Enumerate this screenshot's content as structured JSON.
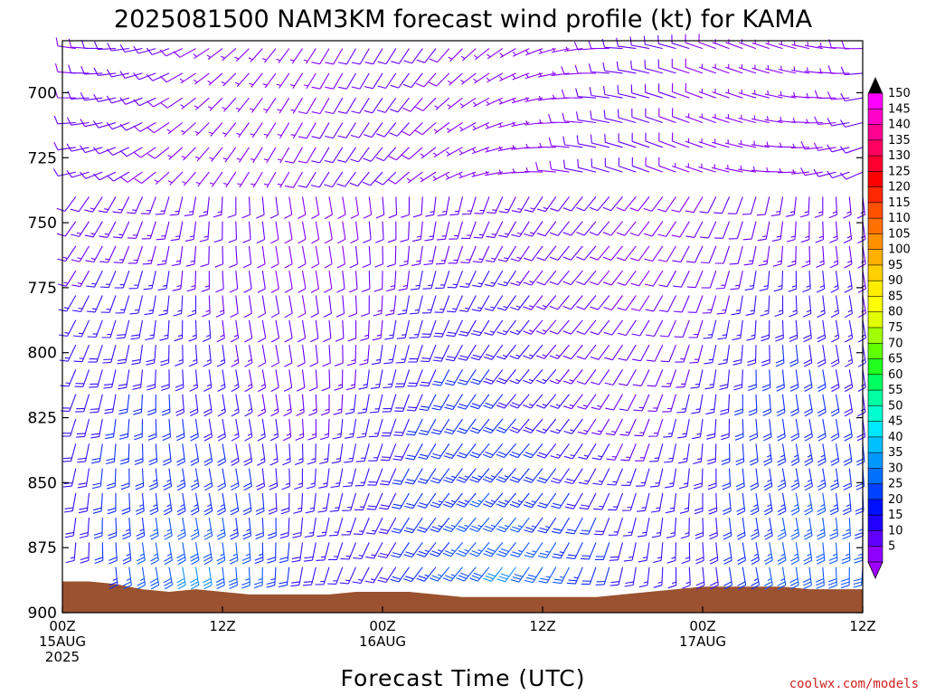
{
  "chart_data": {
    "type": "wind-barb-profile",
    "title": "2025081500 NAM3KM forecast wind profile (kt) for KAMA",
    "xlabel": "Forecast Time (UTC)",
    "ylabel": "",
    "y_axis": {
      "ticks": [
        "700",
        "725",
        "750",
        "775",
        "800",
        "825",
        "850",
        "875",
        "900"
      ],
      "ylim": [
        680,
        900
      ],
      "inverted": true
    },
    "x_axis": {
      "xlim": [
        0,
        60
      ],
      "unit": "forecast hour",
      "ticks": [
        {
          "hour": 0,
          "lines": [
            "00Z",
            "15AUG",
            "2025"
          ]
        },
        {
          "hour": 12,
          "lines": [
            "12Z"
          ]
        },
        {
          "hour": 24,
          "lines": [
            "00Z",
            "16AUG"
          ]
        },
        {
          "hour": 36,
          "lines": [
            "12Z"
          ]
        },
        {
          "hour": 48,
          "lines": [
            "00Z",
            "17AUG"
          ]
        },
        {
          "hour": 60,
          "lines": [
            "12Z"
          ]
        }
      ]
    },
    "colorbar": {
      "labels": [
        "150",
        "145",
        "140",
        "135",
        "130",
        "125",
        "120",
        "115",
        "110",
        "105",
        "100",
        "95",
        "90",
        "85",
        "80",
        "75",
        "70",
        "65",
        "60",
        "55",
        "50",
        "45",
        "40",
        "35",
        "30",
        "25",
        "20",
        "15",
        "10",
        "5"
      ],
      "colors": [
        "#ff00ff",
        "#ff00c8",
        "#ff0090",
        "#ff0060",
        "#ff0030",
        "#ff0000",
        "#ff2800",
        "#ff5000",
        "#ff7000",
        "#ff9000",
        "#ffb000",
        "#ffd000",
        "#ffee00",
        "#ffff00",
        "#e0ff00",
        "#a0ff00",
        "#60ff00",
        "#20ff20",
        "#00ff60",
        "#00ffa0",
        "#00ffd0",
        "#00e8ff",
        "#00c0ff",
        "#0098ff",
        "#0070ff",
        "#0040ff",
        "#0010ff",
        "#2000ff",
        "#6000ff",
        "#9000ff"
      ],
      "extend": "both"
    },
    "terrain": {
      "color": "#9b5230",
      "surface_pressure_by_hour": [
        [
          0,
          888
        ],
        [
          2,
          888
        ],
        [
          4,
          889
        ],
        [
          6,
          891
        ],
        [
          8,
          892
        ],
        [
          10,
          891
        ],
        [
          12,
          892
        ],
        [
          14,
          893
        ],
        [
          16,
          893
        ],
        [
          18,
          893
        ],
        [
          20,
          893
        ],
        [
          22,
          892
        ],
        [
          24,
          892
        ],
        [
          26,
          892
        ],
        [
          28,
          893
        ],
        [
          30,
          894
        ],
        [
          32,
          894
        ],
        [
          34,
          894
        ],
        [
          36,
          894
        ],
        [
          38,
          894
        ],
        [
          40,
          894
        ],
        [
          42,
          893
        ],
        [
          44,
          892
        ],
        [
          46,
          891
        ],
        [
          48,
          890
        ],
        [
          50,
          890
        ],
        [
          52,
          890
        ],
        [
          54,
          890
        ],
        [
          56,
          891
        ],
        [
          58,
          891
        ],
        [
          60,
          891
        ]
      ]
    },
    "grid": false,
    "legend": "colorbar-right"
  },
  "credit": "coolwx.com/models"
}
